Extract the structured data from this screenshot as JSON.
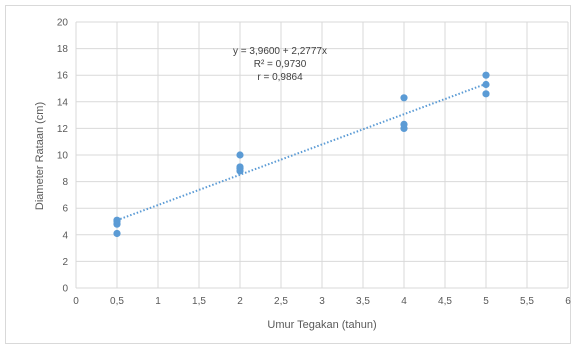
{
  "chart_data": {
    "type": "scatter",
    "title": "",
    "xlabel": "Umur Tegakan (tahun)",
    "ylabel": "Diameter  Rataan (cm)",
    "xlim": [
      0,
      6
    ],
    "ylim": [
      0,
      20
    ],
    "xticks": [
      0,
      0.5,
      1,
      1.5,
      2,
      2.5,
      3,
      3.5,
      4,
      4.5,
      5,
      5.5,
      6
    ],
    "xtick_labels": [
      "0",
      "0,5",
      "1",
      "1,5",
      "2",
      "2,5",
      "3",
      "3,5",
      "4",
      "4,5",
      "5",
      "5,5",
      "6"
    ],
    "yticks": [
      0,
      2,
      4,
      6,
      8,
      10,
      12,
      14,
      16,
      18,
      20
    ],
    "ytick_labels": [
      "0",
      "2",
      "4",
      "6",
      "8",
      "10",
      "12",
      "14",
      "16",
      "18",
      "20"
    ],
    "grid": true,
    "legend": "none",
    "series": [
      {
        "x": [
          0.5,
          0.5,
          0.5,
          0.5,
          2,
          2,
          2,
          2,
          4,
          4,
          4,
          5,
          5,
          5
        ],
        "y": [
          4.1,
          4.8,
          5.0,
          5.1,
          8.8,
          9.0,
          9.1,
          10.0,
          12.0,
          12.3,
          14.3,
          14.6,
          15.3,
          16.0
        ],
        "color": "#5b9bd5"
      }
    ],
    "trendline": {
      "intercept": 3.96,
      "slope": 2.2777,
      "x_range": [
        0.5,
        5
      ],
      "style": "dotted",
      "color": "#5b9bd5"
    },
    "annotations": [
      "y = 3,9600 + 2,2777x",
      "R² = 0,9730",
      "r = 0,9864"
    ]
  },
  "colors": {
    "grid": "#d9d9d9",
    "marker": "#5b9bd5",
    "text": "#595959"
  }
}
